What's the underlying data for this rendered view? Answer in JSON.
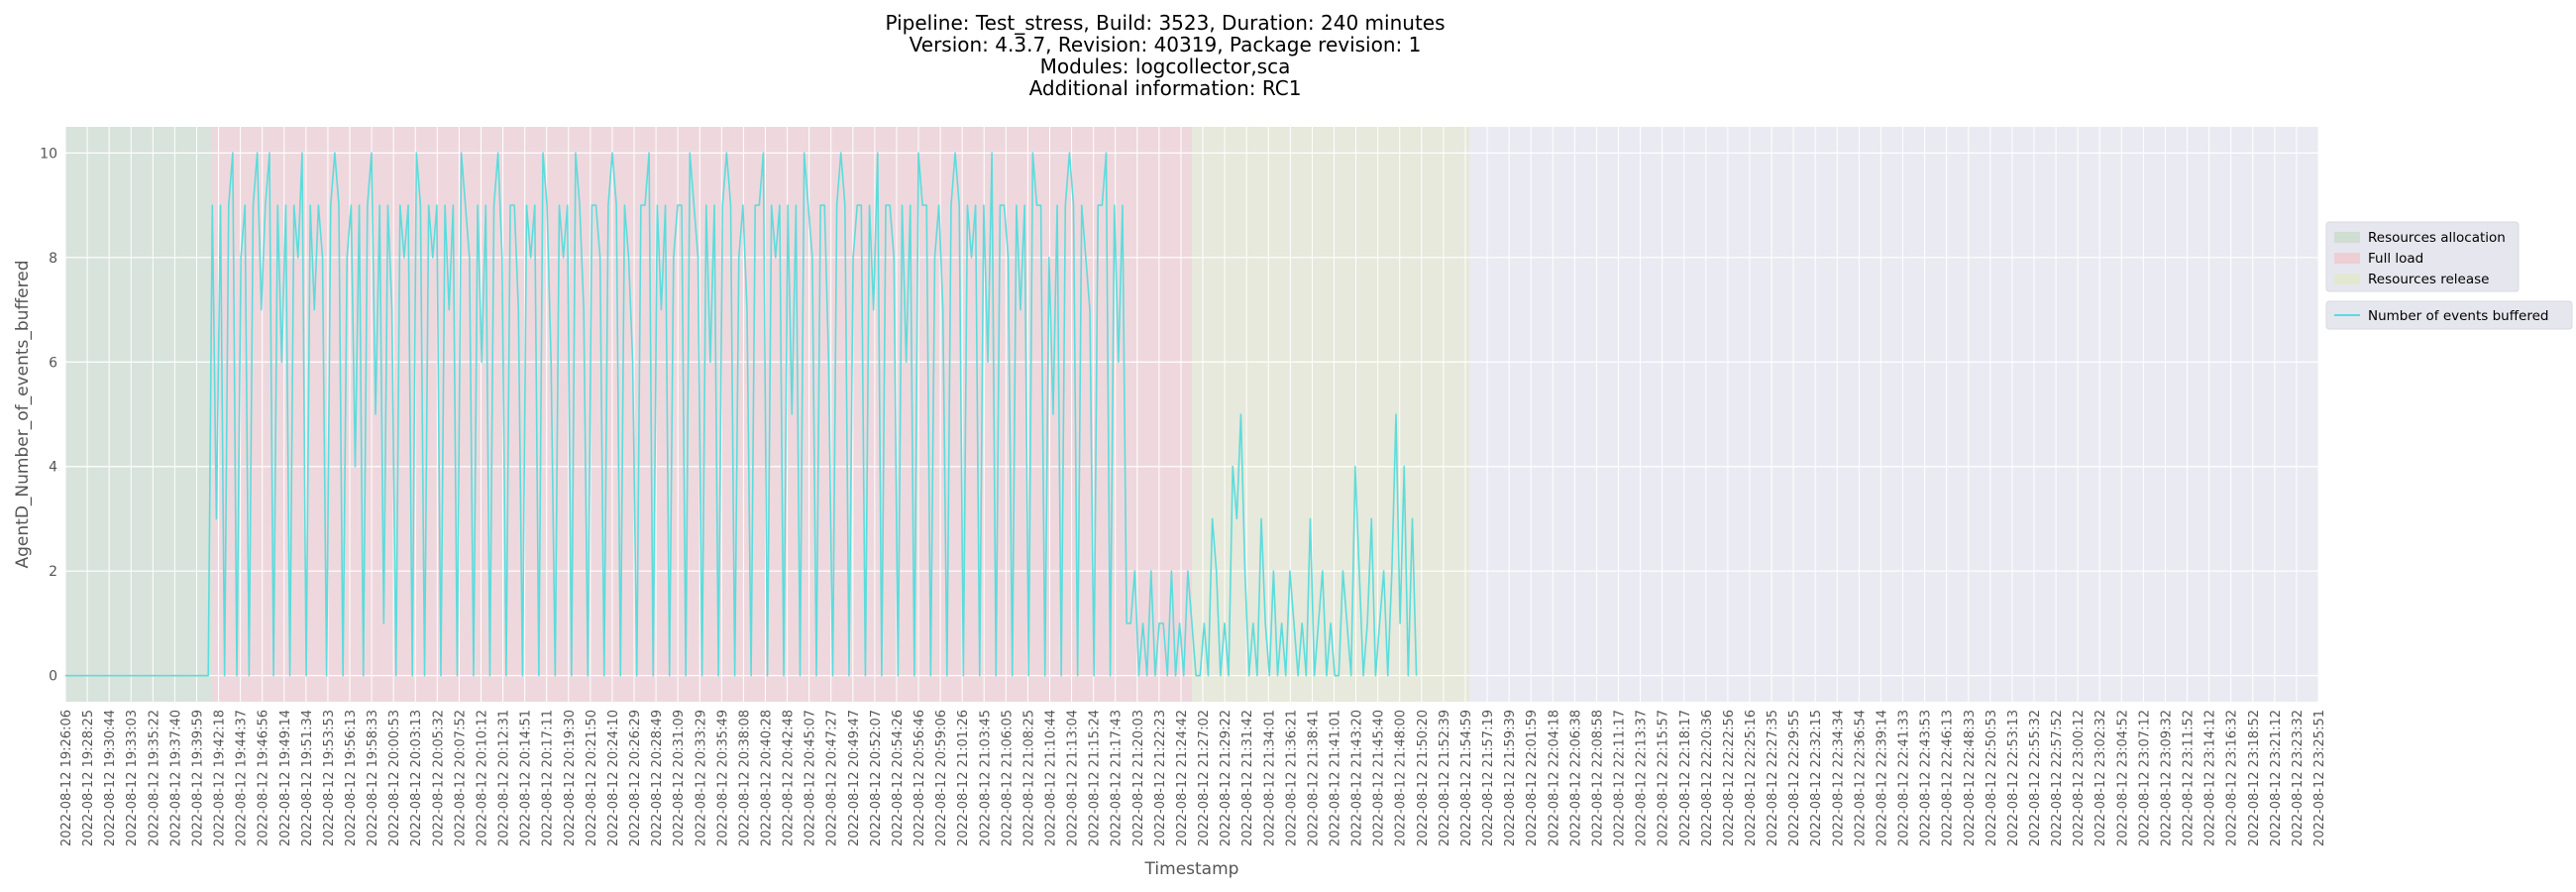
{
  "chart_data": {
    "type": "line",
    "title": [
      "Pipeline: Test_stress, Build: 3523, Duration: 240 minutes",
      "Version: 4.3.7, Revision: 40319, Package revision: 1",
      "Modules: logcollector,sca",
      "Additional information: RC1"
    ],
    "xlabel": "Timestamp",
    "ylabel": "AgentD_Number_of_events_buffered",
    "ylim": [
      -0.5,
      10.5
    ],
    "yticks": [
      0,
      2,
      4,
      6,
      8,
      10
    ],
    "xlim_index": [
      0,
      138
    ],
    "xticks": [
      "2022-08-12 19:26:06",
      "2022-08-12 19:28:25",
      "2022-08-12 19:30:44",
      "2022-08-12 19:33:03",
      "2022-08-12 19:35:22",
      "2022-08-12 19:37:40",
      "2022-08-12 19:39:59",
      "2022-08-12 19:42:18",
      "2022-08-12 19:44:37",
      "2022-08-12 19:46:56",
      "2022-08-12 19:49:14",
      "2022-08-12 19:51:34",
      "2022-08-12 19:53:53",
      "2022-08-12 19:56:13",
      "2022-08-12 19:58:33",
      "2022-08-12 20:00:53",
      "2022-08-12 20:03:13",
      "2022-08-12 20:05:32",
      "2022-08-12 20:07:52",
      "2022-08-12 20:10:12",
      "2022-08-12 20:12:31",
      "2022-08-12 20:14:51",
      "2022-08-12 20:17:11",
      "2022-08-12 20:19:30",
      "2022-08-12 20:21:50",
      "2022-08-12 20:24:10",
      "2022-08-12 20:26:29",
      "2022-08-12 20:28:49",
      "2022-08-12 20:31:09",
      "2022-08-12 20:33:29",
      "2022-08-12 20:35:49",
      "2022-08-12 20:38:08",
      "2022-08-12 20:40:28",
      "2022-08-12 20:42:48",
      "2022-08-12 20:45:07",
      "2022-08-12 20:47:27",
      "2022-08-12 20:49:47",
      "2022-08-12 20:52:07",
      "2022-08-12 20:54:26",
      "2022-08-12 20:56:46",
      "2022-08-12 20:59:06",
      "2022-08-12 21:01:26",
      "2022-08-12 21:03:45",
      "2022-08-12 21:06:05",
      "2022-08-12 21:08:25",
      "2022-08-12 21:10:44",
      "2022-08-12 21:13:04",
      "2022-08-12 21:15:24",
      "2022-08-12 21:17:43",
      "2022-08-12 21:20:03",
      "2022-08-12 21:22:23",
      "2022-08-12 21:24:42",
      "2022-08-12 21:27:02",
      "2022-08-12 21:29:22",
      "2022-08-12 21:31:42",
      "2022-08-12 21:34:01",
      "2022-08-12 21:36:21",
      "2022-08-12 21:38:41",
      "2022-08-12 21:41:01",
      "2022-08-12 21:43:20",
      "2022-08-12 21:45:40",
      "2022-08-12 21:48:00",
      "2022-08-12 21:50:20",
      "2022-08-12 21:52:39",
      "2022-08-12 21:54:59",
      "2022-08-12 21:57:19",
      "2022-08-12 21:59:39",
      "2022-08-12 22:01:59",
      "2022-08-12 22:04:18",
      "2022-08-12 22:06:38",
      "2022-08-12 22:08:58",
      "2022-08-12 22:11:17",
      "2022-08-12 22:13:37",
      "2022-08-12 22:15:57",
      "2022-08-12 22:18:17",
      "2022-08-12 22:20:36",
      "2022-08-12 22:22:56",
      "2022-08-12 22:25:16",
      "2022-08-12 22:27:35",
      "2022-08-12 22:29:55",
      "2022-08-12 22:32:15",
      "2022-08-12 22:34:34",
      "2022-08-12 22:36:54",
      "2022-08-12 22:39:14",
      "2022-08-12 22:41:33",
      "2022-08-12 22:43:53",
      "2022-08-12 22:46:13",
      "2022-08-12 22:48:33",
      "2022-08-12 22:50:53",
      "2022-08-12 22:53:13",
      "2022-08-12 22:55:32",
      "2022-08-12 22:57:52",
      "2022-08-12 23:00:12",
      "2022-08-12 23:02:32",
      "2022-08-12 23:04:52",
      "2022-08-12 23:07:12",
      "2022-08-12 23:09:32",
      "2022-08-12 23:11:52",
      "2022-08-12 23:14:12",
      "2022-08-12 23:16:32",
      "2022-08-12 23:18:52",
      "2022-08-12 23:21:12",
      "2022-08-12 23:23:32",
      "2022-08-12 23:25:51"
    ],
    "phases": [
      {
        "name": "Resources allocation",
        "start_index": 0,
        "end_index": 36,
        "color": "#c8dcc8"
      },
      {
        "name": "Full load",
        "start_index": 36,
        "end_index": 276,
        "color": "#f0c8cc"
      },
      {
        "name": "Resources release",
        "start_index": 276,
        "end_index": 344,
        "color": "#e2e8c8"
      }
    ],
    "series": [
      {
        "name": "Number of events buffered",
        "color": "#5cdcdc",
        "x_step_fraction": 0.25,
        "values": [
          0,
          0,
          0,
          0,
          0,
          0,
          0,
          0,
          0,
          0,
          0,
          0,
          0,
          0,
          0,
          0,
          0,
          0,
          0,
          0,
          0,
          0,
          0,
          0,
          0,
          0,
          0,
          0,
          0,
          0,
          0,
          0,
          0,
          0,
          0,
          0,
          9,
          3,
          9,
          0,
          9,
          10,
          0,
          8,
          9,
          0,
          9,
          10,
          7,
          9,
          10,
          0,
          9,
          6,
          9,
          0,
          9,
          8,
          10,
          0,
          9,
          7,
          9,
          8,
          0,
          9,
          10,
          9,
          0,
          8,
          9,
          4,
          9,
          0,
          9,
          10,
          5,
          9,
          1,
          9,
          7,
          0,
          9,
          8,
          9,
          0,
          10,
          9,
          0,
          9,
          8,
          9,
          0,
          9,
          7,
          9,
          0,
          10,
          9,
          8,
          0,
          9,
          6,
          9,
          0,
          9,
          10,
          8,
          0,
          9,
          9,
          7,
          0,
          9,
          8,
          9,
          0,
          10,
          9,
          6,
          0,
          9,
          8,
          9,
          0,
          10,
          9,
          7,
          0,
          9,
          9,
          8,
          0,
          9,
          10,
          9,
          0,
          9,
          8,
          6,
          0,
          9,
          9,
          10,
          0,
          9,
          7,
          9,
          0,
          8,
          9,
          9,
          0,
          10,
          9,
          8,
          0,
          9,
          6,
          9,
          0,
          9,
          10,
          9,
          0,
          8,
          9,
          7,
          0,
          9,
          9,
          10,
          0,
          9,
          8,
          9,
          0,
          9,
          5,
          9,
          0,
          10,
          9,
          8,
          0,
          9,
          9,
          6,
          0,
          9,
          10,
          9,
          0,
          8,
          9,
          9,
          0,
          9,
          7,
          10,
          0,
          9,
          9,
          8,
          0,
          9,
          6,
          9,
          0,
          10,
          9,
          9,
          0,
          8,
          9,
          7,
          0,
          9,
          10,
          9,
          0,
          9,
          8,
          9,
          0,
          9,
          6,
          10,
          0,
          9,
          9,
          8,
          0,
          9,
          7,
          9,
          0,
          10,
          9,
          9,
          0,
          8,
          5,
          9,
          0,
          9,
          10,
          9,
          0,
          9,
          8,
          7,
          0,
          9,
          9,
          10,
          0,
          9,
          6,
          9,
          1,
          1,
          2,
          0,
          1,
          0,
          2,
          0,
          1,
          1,
          0,
          2,
          0,
          1,
          0,
          2,
          1,
          0,
          0,
          1,
          0,
          3,
          2,
          0,
          1,
          0,
          4,
          3,
          5,
          2,
          0,
          1,
          0,
          3,
          1,
          0,
          2,
          0,
          1,
          0,
          2,
          1,
          0,
          1,
          0,
          3,
          0,
          1,
          2,
          0,
          1,
          0,
          0,
          2,
          1,
          0,
          4,
          2,
          0,
          1,
          3,
          0,
          1,
          2,
          0,
          2,
          5,
          1,
          4,
          0,
          3,
          0
        ]
      }
    ],
    "legend": {
      "location": "right"
    }
  }
}
